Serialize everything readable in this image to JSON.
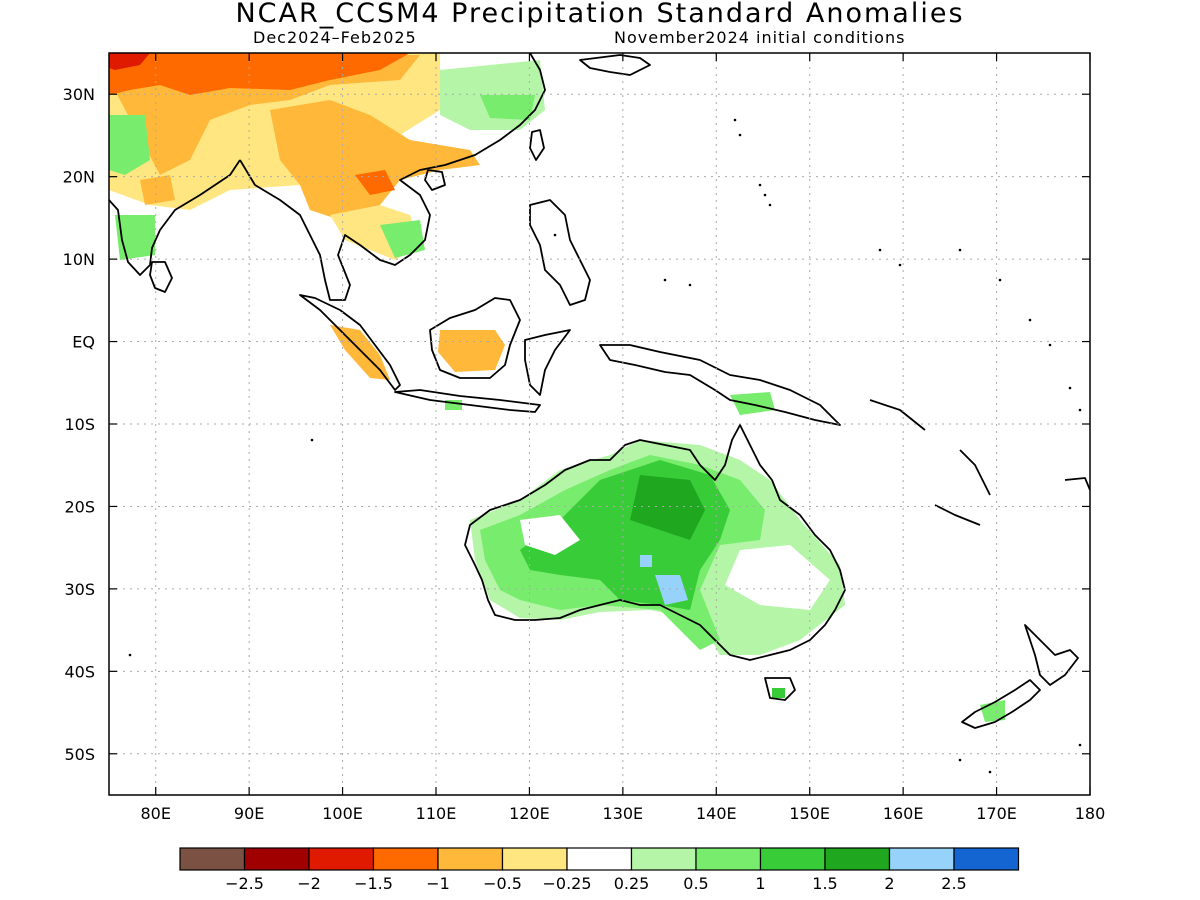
{
  "title": "NCAR_CCSM4 Precipitation Standard Anomalies",
  "subtitle_left": "Dec2024–Feb2025",
  "subtitle_right": "November2024 initial conditions",
  "map": {
    "lon_range": [
      75,
      180
    ],
    "lat_range": [
      -55,
      35
    ],
    "lat_ticks": [
      {
        "value": 30,
        "label": "30N"
      },
      {
        "value": 20,
        "label": "20N"
      },
      {
        "value": 10,
        "label": "10N"
      },
      {
        "value": 0,
        "label": "EQ"
      },
      {
        "value": -10,
        "label": "10S"
      },
      {
        "value": -20,
        "label": "20S"
      },
      {
        "value": -30,
        "label": "30S"
      },
      {
        "value": -40,
        "label": "40S"
      },
      {
        "value": -50,
        "label": "50S"
      }
    ],
    "lon_ticks": [
      {
        "value": 80,
        "label": "80E"
      },
      {
        "value": 90,
        "label": "90E"
      },
      {
        "value": 100,
        "label": "100E"
      },
      {
        "value": 110,
        "label": "110E"
      },
      {
        "value": 120,
        "label": "120E"
      },
      {
        "value": 130,
        "label": "130E"
      },
      {
        "value": 140,
        "label": "140E"
      },
      {
        "value": 150,
        "label": "150E"
      },
      {
        "value": 160,
        "label": "160E"
      },
      {
        "value": 170,
        "label": "170E"
      },
      {
        "value": 180,
        "label": "180"
      }
    ],
    "grid": true
  },
  "colorbar": {
    "colors": [
      "#7a5143",
      "#a00000",
      "#e01a00",
      "#ff6a00",
      "#ffb83a",
      "#ffe680",
      "#ffffff",
      "#b4f5a8",
      "#78ec6c",
      "#38cc38",
      "#1fa81f",
      "#96d2fa",
      "#1464d2"
    ],
    "labels": [
      "−2.5",
      "−2",
      "−1.5",
      "−1",
      "−0.5",
      "−0.25",
      "0.25",
      "0.5",
      "1",
      "1.5",
      "2",
      "2.5"
    ]
  }
}
